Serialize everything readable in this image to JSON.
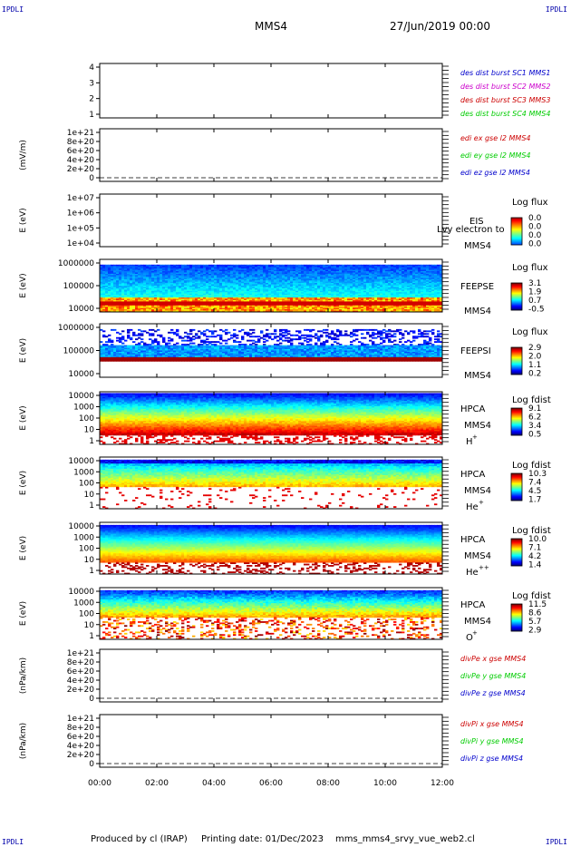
{
  "corners": {
    "tl": "IPDLI",
    "tr": "IPDLI",
    "bl": "IPDLI",
    "br": "IPDLI"
  },
  "header": {
    "spacecraft": "MMS4",
    "date": "27/Jun/2019 00:00"
  },
  "footer": {
    "producer": "Produced by cl (IRAP)",
    "printed": "Printing date: 01/Dec/2023",
    "script": "mms_mms4_srvy_vue_web2.cl"
  },
  "colors": {
    "blue": "#0000cc",
    "magenta": "#cc00cc",
    "red": "#cc0000",
    "green": "#00cc00"
  },
  "chart_data": {
    "type": "heatmap",
    "xaxis": {
      "ticks": [
        "00:00",
        "02:00",
        "04:00",
        "06:00",
        "08:00",
        "10:00",
        "12:00"
      ],
      "range_hours": [
        0,
        12
      ]
    },
    "panels": [
      {
        "ylabel": "",
        "yticks": [
          "4",
          "3",
          "2",
          "1"
        ],
        "legend": [
          {
            "text": "des dist burst SC1 MMS1",
            "color": "blue"
          },
          {
            "text": "des dist burst SC2 MMS2",
            "color": "magenta"
          },
          {
            "text": "des dist burst SC3 MMS3",
            "color": "red"
          },
          {
            "text": "des dist burst SC4 MMS4",
            "color": "green"
          }
        ]
      },
      {
        "ylabel": "(mV/m)",
        "yticks": [
          "1e+21",
          "8e+20",
          "6e+20",
          "4e+20",
          "2e+20",
          "0"
        ],
        "zero_line": true,
        "legend": [
          {
            "text": "edi ex gse l2 MMS4",
            "color": "red"
          },
          {
            "text": "edi ey gse l2 MMS4",
            "color": "green"
          },
          {
            "text": "edi ez gse l2 MMS4",
            "color": "blue"
          }
        ]
      },
      {
        "ylabel": "E (eV)",
        "yticks": [
          "1e+07",
          "1e+06",
          "1e+05",
          "1e+04"
        ],
        "instrument": [
          "EIS",
          "MMS4"
        ],
        "overlay": "Lvy electron to",
        "cbar_title": "Log flux",
        "cbar_ticks": [
          "0.0",
          "0.0",
          "0.0",
          "0.0"
        ]
      },
      {
        "ylabel": "E (eV)",
        "yticks": [
          "1000000",
          "100000",
          "10000"
        ],
        "instrument": [
          "FEEPSE",
          "MMS4"
        ],
        "cbar_title": "Log flux",
        "cbar_ticks": [
          "3.1",
          "1.9",
          "0.7",
          "-0.5"
        ]
      },
      {
        "ylabel": "E (eV)",
        "yticks": [
          "1000000",
          "100000",
          "10000"
        ],
        "instrument": [
          "FEEPSI",
          "MMS4"
        ],
        "cbar_title": "Log flux",
        "cbar_ticks": [
          "2.9",
          "2.0",
          "1.1",
          "0.2"
        ]
      },
      {
        "ylabel": "E (eV)",
        "yticks": [
          "10000",
          "1000",
          "100",
          "10",
          "1"
        ],
        "instrument": [
          "HPCA",
          "MMS4"
        ],
        "species": "H",
        "charge": "+",
        "cbar_title": "Log fdist",
        "cbar_ticks": [
          "9.1",
          "6.2",
          "3.4",
          "0.5"
        ]
      },
      {
        "ylabel": "E (eV)",
        "yticks": [
          "10000",
          "1000",
          "100",
          "10",
          "1"
        ],
        "instrument": [
          "HPCA",
          "MMS4"
        ],
        "species": "He",
        "charge": "+",
        "cbar_title": "Log fdist",
        "cbar_ticks": [
          "10.3",
          "7.4",
          "4.5",
          "1.7"
        ]
      },
      {
        "ylabel": "E (eV)",
        "yticks": [
          "10000",
          "1000",
          "100",
          "10",
          "1"
        ],
        "instrument": [
          "HPCA",
          "MMS4"
        ],
        "species": "He",
        "charge": "++",
        "cbar_title": "Log fdist",
        "cbar_ticks": [
          "10.0",
          "7.1",
          "4.2",
          "1.4"
        ]
      },
      {
        "ylabel": "E (eV)",
        "yticks": [
          "10000",
          "1000",
          "100",
          "10",
          "1"
        ],
        "instrument": [
          "HPCA",
          "MMS4"
        ],
        "species": "O",
        "charge": "+",
        "cbar_title": "Log fdist",
        "cbar_ticks": [
          "11.5",
          "8.6",
          "5.7",
          "2.9"
        ]
      },
      {
        "ylabel": "(nPa/km)",
        "yticks": [
          "1e+21",
          "8e+20",
          "6e+20",
          "4e+20",
          "2e+20",
          "0"
        ],
        "zero_line": true,
        "legend": [
          {
            "text": "divPe x gse MMS4",
            "color": "red"
          },
          {
            "text": "divPe y gse MMS4",
            "color": "green"
          },
          {
            "text": "divPe z gse MMS4",
            "color": "blue"
          }
        ]
      },
      {
        "ylabel": "(nPa/km)",
        "yticks": [
          "1e+21",
          "8e+20",
          "6e+20",
          "4e+20",
          "2e+20",
          "0"
        ],
        "zero_line": true,
        "legend": [
          {
            "text": "divPi x gse MMS4",
            "color": "red"
          },
          {
            "text": "divPi y gse MMS4",
            "color": "green"
          },
          {
            "text": "divPi z gse MMS4",
            "color": "blue"
          }
        ]
      }
    ]
  }
}
